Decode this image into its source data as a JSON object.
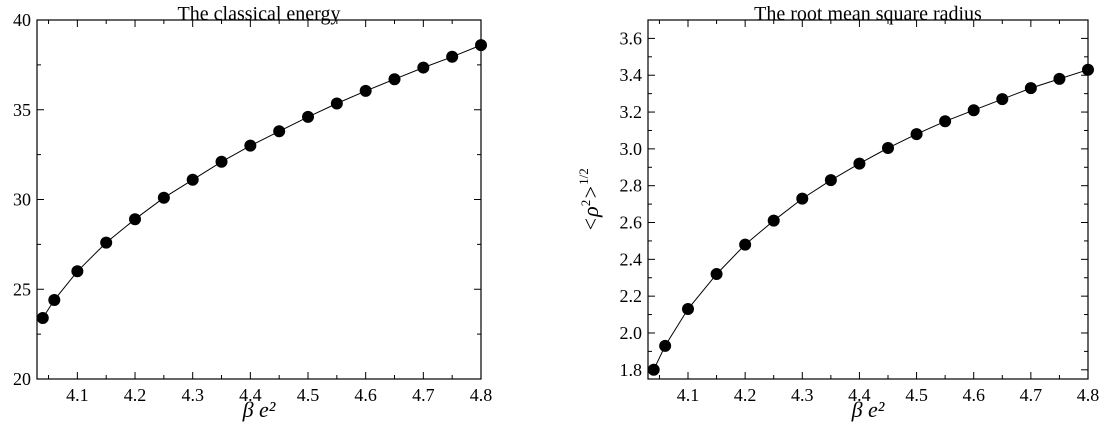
{
  "chart_data": [
    {
      "type": "line",
      "title": "The classical energy",
      "xlabel": "β e²",
      "ylabel": "",
      "xlim": [
        4.03,
        4.8
      ],
      "ylim": [
        20,
        40
      ],
      "xticks": [
        4.1,
        4.2,
        4.3,
        4.4,
        4.5,
        4.6,
        4.7,
        4.8
      ],
      "xtick_labels": [
        "4.1",
        "4.2",
        "4.3",
        "4.4",
        "4.5",
        "4.6",
        "4.7",
        "4.8"
      ],
      "yticks": [
        20,
        25,
        30,
        35,
        40
      ],
      "ytick_labels": [
        "20",
        "25",
        "30",
        "35",
        "40"
      ],
      "grid": false,
      "series": [
        {
          "x": [
            4.04,
            4.06,
            4.1,
            4.15,
            4.2,
            4.25,
            4.3,
            4.35,
            4.4,
            4.45,
            4.5,
            4.55,
            4.6,
            4.65,
            4.7,
            4.75,
            4.8
          ],
          "y": [
            23.4,
            24.4,
            26.0,
            27.6,
            28.9,
            30.1,
            31.1,
            32.1,
            33.0,
            33.8,
            34.6,
            35.35,
            36.05,
            36.7,
            37.35,
            37.95,
            38.6
          ]
        }
      ]
    },
    {
      "type": "line",
      "title": "The root mean square radius",
      "xlabel": "β e²",
      "ylabel": "<ρ²>^(1/2)",
      "ylabel_parts": {
        "open": "<",
        "rho": "ρ",
        "sup2": "2",
        "close": ">",
        "sup_exp": "1/2"
      },
      "xlim": [
        4.03,
        4.8
      ],
      "ylim": [
        1.75,
        3.7
      ],
      "xticks": [
        4.1,
        4.2,
        4.3,
        4.4,
        4.5,
        4.6,
        4.7,
        4.8
      ],
      "xtick_labels": [
        "4.1",
        "4.2",
        "4.3",
        "4.4",
        "4.5",
        "4.6",
        "4.7",
        "4.8"
      ],
      "yticks": [
        1.8,
        2.0,
        2.2,
        2.4,
        2.6,
        2.8,
        3.0,
        3.2,
        3.4,
        3.6
      ],
      "ytick_labels": [
        "1.8",
        "2.0",
        "2.2",
        "2.4",
        "2.6",
        "2.8",
        "3.0",
        "3.2",
        "3.4",
        "3.6"
      ],
      "grid": false,
      "series": [
        {
          "x": [
            4.04,
            4.06,
            4.1,
            4.15,
            4.2,
            4.25,
            4.3,
            4.35,
            4.4,
            4.45,
            4.5,
            4.55,
            4.6,
            4.65,
            4.7,
            4.75,
            4.8
          ],
          "y": [
            1.8,
            1.93,
            2.13,
            2.32,
            2.48,
            2.61,
            2.73,
            2.83,
            2.92,
            3.005,
            3.08,
            3.15,
            3.21,
            3.27,
            3.33,
            3.38,
            3.43
          ]
        }
      ]
    }
  ]
}
